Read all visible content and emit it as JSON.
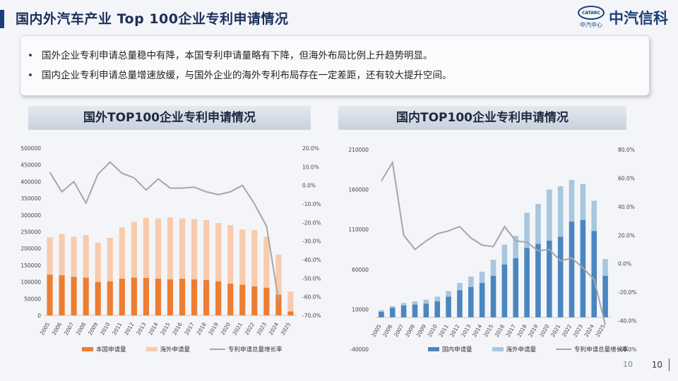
{
  "header": {
    "title": "国内外汽车产业 Top 100企业专利申请情况",
    "logo_badge": "CATARC",
    "logo_sub": "中汽中心",
    "logo_name": "中汽信科"
  },
  "summary": {
    "bullets": [
      "国外企业专利申请总量稳中有降，本国专利申请量略有下降，但海外布局比例上升趋势明显。",
      "国内企业专利申请总量增速放缓，与国外企业的海外专利布局存在一定差距，还有较大提升空间。"
    ]
  },
  "colors": {
    "left_domestic": "#ed7d31",
    "left_overseas": "#f8cbad",
    "right_domestic": "#4a86c0",
    "right_overseas": "#a9c6df",
    "growth_line": "#a6a6a6",
    "title_navy": "#1c2f5c"
  },
  "chart_data": [
    {
      "type": "bar",
      "stacked": true,
      "title": "国外TOP100企业专利申请情况",
      "categories": [
        "2005",
        "2006",
        "2007",
        "2008",
        "2009",
        "2010",
        "2011",
        "2012",
        "2013",
        "2014",
        "2015",
        "2016",
        "2017",
        "2018",
        "2019",
        "2020",
        "2021",
        "2022",
        "2023",
        "2024",
        "2025"
      ],
      "series": [
        {
          "name": "本国申请量",
          "values": [
            122000,
            120000,
            115000,
            113000,
            100000,
            102000,
            110000,
            113000,
            112000,
            110000,
            108000,
            110000,
            108000,
            106000,
            102000,
            95000,
            92000,
            87000,
            83000,
            62000,
            12000
          ]
        },
        {
          "name": "海外申请量",
          "values": [
            111000,
            123000,
            120000,
            127000,
            117000,
            130000,
            153000,
            167000,
            180000,
            180000,
            185000,
            180000,
            180000,
            179000,
            174000,
            175000,
            165000,
            168000,
            152000,
            120000,
            59000
          ]
        },
        {
          "name": "专利申请总量增长率",
          "type": "line",
          "axis": "right",
          "values": [
            7.0,
            -3.5,
            2.0,
            -9.5,
            6.0,
            12.5,
            6.5,
            4.0,
            -2.5,
            3.5,
            -1.5,
            -1.5,
            -1.0,
            -3.5,
            -5.0,
            -3.5,
            0.0,
            -10.0,
            -22.0,
            -62.0,
            null
          ]
        }
      ],
      "y_left": {
        "ylim": [
          0,
          500000
        ],
        "ticks": [
          "0",
          "50000",
          "100000",
          "150000",
          "200000",
          "250000",
          "300000",
          "350000",
          "400000",
          "450000",
          "500000"
        ]
      },
      "y_right": {
        "ylim": [
          -70,
          20
        ],
        "ticks": [
          "-70.0%",
          "-60.0%",
          "-50.0%",
          "-40.0%",
          "-30.0%",
          "-20.0%",
          "-10.0%",
          "0.0%",
          "10.0%",
          "20.0%"
        ]
      },
      "legend": "bottom"
    },
    {
      "type": "bar",
      "stacked": true,
      "title": "国内TOP100企业专利申请情况",
      "categories": [
        "2005",
        "2006",
        "2007",
        "2008",
        "2009",
        "2010",
        "2011",
        "2012",
        "2013",
        "2014",
        "2015",
        "2016",
        "2017",
        "2018",
        "2019",
        "2020",
        "2021",
        "2022",
        "2023",
        "2024",
        "2025"
      ],
      "series": [
        {
          "name": "国内申请量",
          "values": [
            7000,
            12000,
            15000,
            16000,
            17000,
            20000,
            26000,
            34000,
            38000,
            43000,
            52000,
            66000,
            74000,
            87000,
            92000,
            96000,
            101000,
            120000,
            122000,
            108000,
            52000
          ]
        },
        {
          "name": "海外申请量",
          "values": [
            2000,
            2000,
            3000,
            4000,
            5000,
            6000,
            7000,
            9000,
            13000,
            14000,
            20000,
            25000,
            28000,
            44000,
            50000,
            64000,
            63000,
            52000,
            45000,
            38000,
            21000
          ]
        },
        {
          "name": "专利申请总量增长率",
          "type": "line",
          "axis": "right",
          "values": [
            58,
            71,
            20,
            10,
            16,
            21,
            23,
            26,
            18,
            13,
            12,
            26,
            16,
            15,
            9,
            10,
            2,
            4,
            -3,
            -11,
            -43
          ]
        }
      ],
      "y_left": {
        "ylim": [
          -40000,
          210000
        ],
        "ticks": [
          "-40000",
          "10000",
          "60000",
          "110000",
          "160000",
          "210000"
        ]
      },
      "y_right": {
        "ylim": [
          -60,
          80
        ],
        "ticks": [
          "-60.0%",
          "-40.0%",
          "-20.0%",
          "0.0%",
          "20.0%",
          "40.0%",
          "60.0%",
          "80.0%"
        ]
      },
      "legend": "bottom"
    }
  ],
  "page": {
    "number_gray": "10",
    "number": "10"
  }
}
